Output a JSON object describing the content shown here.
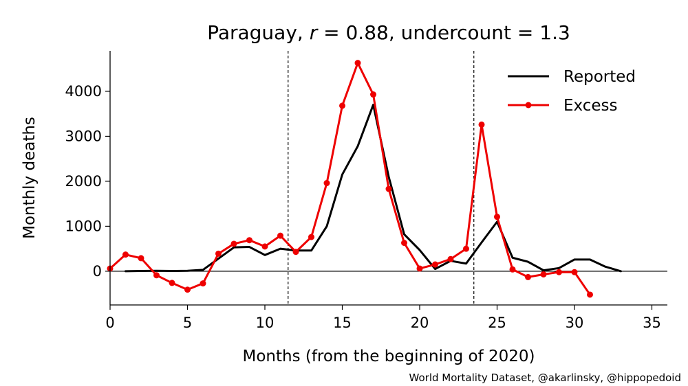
{
  "chart_data": {
    "type": "line",
    "title": "Paraguay, r = 0.88, undercount = 1.3",
    "title_parts": {
      "country": "Paraguay, ",
      "r_symbol": "r",
      "r_rest": " = 0.88, undercount = 1.3"
    },
    "xlabel": "Months (from the beginning of 2020)",
    "ylabel": "Monthly deaths",
    "xlim": [
      0,
      36
    ],
    "ylim": [
      -750,
      4900
    ],
    "xticks": [
      0,
      5,
      10,
      15,
      20,
      25,
      30,
      35
    ],
    "yticks": [
      0,
      1000,
      2000,
      3000,
      4000
    ],
    "vlines": [
      11.5,
      23.5
    ],
    "hline": 0,
    "legend_position": "top-right",
    "grid": false,
    "source": "World Mortality Dataset, @akarlinsky, @hippopedoid",
    "series": [
      {
        "name": "Reported",
        "color": "#000000",
        "markers": false,
        "x": [
          1,
          2,
          3,
          4,
          5,
          6,
          7,
          8,
          9,
          10,
          11,
          12,
          13,
          14,
          15,
          16,
          17,
          18,
          19,
          20,
          21,
          22,
          23,
          24,
          25,
          26,
          27,
          28,
          29,
          30,
          31,
          32,
          33
        ],
        "y": [
          0,
          5,
          10,
          5,
          10,
          30,
          280,
          530,
          540,
          360,
          500,
          460,
          460,
          1000,
          2150,
          2780,
          3700,
          2100,
          820,
          470,
          50,
          230,
          170,
          640,
          1100,
          300,
          210,
          20,
          70,
          260,
          260,
          100,
          0
        ]
      },
      {
        "name": "Excess",
        "color": "#ee0000",
        "markers": true,
        "x": [
          0,
          1,
          2,
          3,
          4,
          5,
          6,
          7,
          8,
          9,
          10,
          11,
          12,
          13,
          14,
          15,
          16,
          17,
          18,
          19,
          20,
          21,
          22,
          23,
          24,
          25,
          26,
          27,
          28,
          29,
          30,
          31
        ],
        "y": [
          60,
          370,
          290,
          -90,
          -260,
          -410,
          -270,
          390,
          610,
          690,
          550,
          790,
          430,
          760,
          1960,
          3680,
          4630,
          3930,
          1830,
          630,
          60,
          150,
          270,
          500,
          3260,
          1210,
          40,
          -130,
          -70,
          -20,
          -20,
          -520
        ]
      }
    ]
  }
}
